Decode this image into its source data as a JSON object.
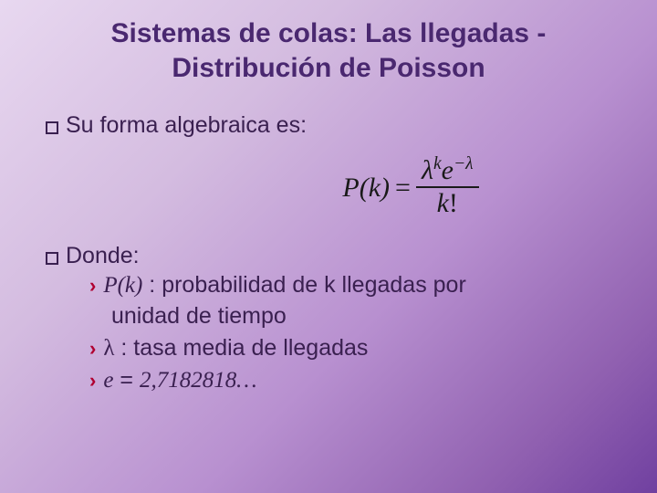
{
  "title_line1": "Sistemas de colas: Las llegadas -",
  "title_line2": "Distribución  de Poisson",
  "bullet1": "Su forma algebraica es:",
  "formula_lhs": "P(k)",
  "formula_eq": "=",
  "formula_num_lambda": "λ",
  "formula_num_k": "k",
  "formula_num_e": "e",
  "formula_num_neglambda": "−λ",
  "formula_den_k": "k",
  "formula_den_excl": "!",
  "donde_label": "Donde:",
  "item1_var": "P(k)",
  "item1_text_a": " : probabilidad de k llegadas por",
  "item1_text_b": "unidad de tiempo",
  "item2_var": "λ",
  "item2_text": " : tasa media de llegadas",
  "item3_var": "e",
  "item3_eq": " = ",
  "item3_val": "2,7182818…",
  "colors": {
    "title": "#4a2870",
    "body_text": "#3a2050",
    "chevron": "#b00030",
    "formula": "#1a1a1a"
  }
}
